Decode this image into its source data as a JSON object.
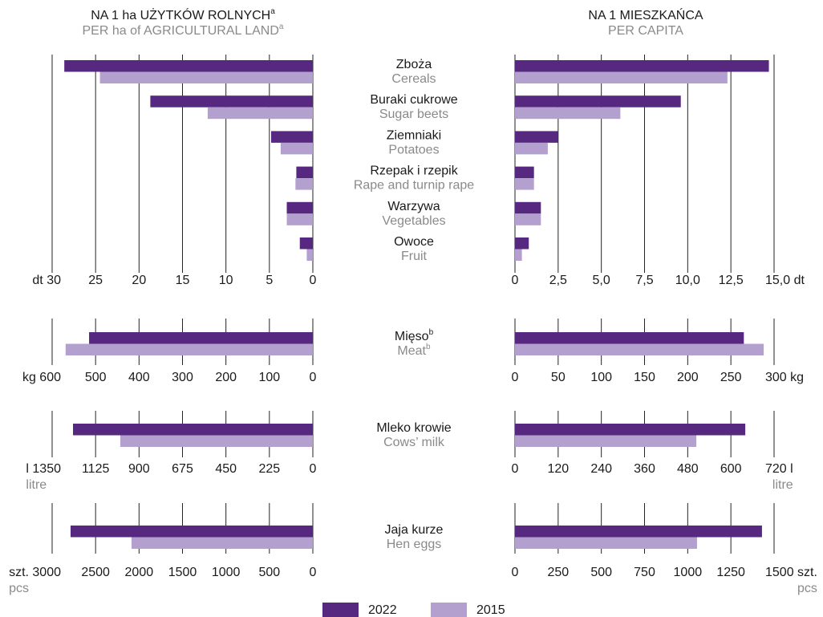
{
  "headers": [
    {
      "title": "NA 1 ha UŻYTKÓW ROLNYCH",
      "title_note": "a",
      "subtitle": "PER ha of AGRICULTURAL LAND",
      "subtitle_note": "a"
    },
    {
      "title": "NA 1 MIESZKAŃCA",
      "subtitle": "PER CAPITA"
    }
  ],
  "chart_data": [
    {
      "type": "bar",
      "orientation": "horizontal",
      "categories": [
        "Zboża",
        "Buraki cukrowe",
        "Ziemniaki",
        "Rzepak i rzepik",
        "Warzywa",
        "Owoce"
      ],
      "categories_en": [
        "Cereals",
        "Sugar beets",
        "Potatoes",
        "Rape and turnip rape",
        "Vegetables",
        "Fruit"
      ],
      "series": [
        {
          "name": "2022",
          "color": "#57287f",
          "values": [
            28.6,
            18.7,
            4.8,
            1.9,
            3.0,
            1.5
          ]
        },
        {
          "name": "2015",
          "color": "#b4a0cf",
          "values": [
            24.5,
            12.1,
            3.7,
            2.0,
            3.0,
            0.7
          ]
        }
      ],
      "xlim": [
        30,
        0
      ],
      "xticks": [
        {
          "value": 30,
          "label": "dt 30"
        },
        25,
        20,
        15,
        10,
        5,
        0
      ]
    },
    {
      "type": "bar",
      "orientation": "horizontal",
      "series": [
        {
          "color": "#57287f",
          "values": [
            14.7,
            9.6,
            2.5,
            1.1,
            1.5,
            0.8
          ]
        },
        {
          "color": "#b4a0cf",
          "values": [
            12.3,
            6.1,
            1.9,
            1.1,
            1.5,
            0.4
          ]
        }
      ],
      "xlim": [
        0,
        15
      ],
      "xticks": [
        0,
        {
          "value": 2.5,
          "label": "2,5"
        },
        {
          "value": 5,
          "label": "5,0"
        },
        {
          "value": 7.5,
          "label": "7,5"
        },
        {
          "value": 10,
          "label": "10,0"
        },
        {
          "value": 12.5,
          "label": "12,5"
        },
        {
          "value": 15,
          "label": "15,0 dt"
        }
      ]
    },
    {
      "type": "bar",
      "orientation": "horizontal",
      "categories": [
        "Mięso"
      ],
      "category_notes": [
        "b"
      ],
      "categories_en": [
        "Meat"
      ],
      "categories_en_notes": [
        "b"
      ],
      "series": [
        {
          "color": "#57287f",
          "values": [
            515
          ]
        },
        {
          "color": "#b4a0cf",
          "values": [
            569
          ]
        }
      ],
      "xlim": [
        600,
        0
      ],
      "xticks": [
        {
          "value": 600,
          "label": "kg 600"
        },
        500,
        400,
        300,
        200,
        100,
        0
      ]
    },
    {
      "type": "bar",
      "orientation": "horizontal",
      "series": [
        {
          "color": "#57287f",
          "values": [
            265
          ]
        },
        {
          "color": "#b4a0cf",
          "values": [
            288
          ]
        }
      ],
      "xlim": [
        0,
        300
      ],
      "xticks": [
        0,
        50,
        100,
        150,
        200,
        250,
        {
          "value": 300,
          "label": "300 kg"
        }
      ]
    },
    {
      "type": "bar",
      "orientation": "horizontal",
      "categories": [
        "Mleko krowie"
      ],
      "categories_en": [
        "Cows’ milk"
      ],
      "series": [
        {
          "color": "#57287f",
          "values": [
            1242
          ]
        },
        {
          "color": "#b4a0cf",
          "values": [
            997
          ]
        }
      ],
      "xlim": [
        1350,
        0
      ],
      "xticks": [
        {
          "value": 1350,
          "label": "l 1350"
        },
        1125,
        900,
        675,
        450,
        225,
        0
      ],
      "unit_note": "litre"
    },
    {
      "type": "bar",
      "orientation": "horizontal",
      "series": [
        {
          "color": "#57287f",
          "values": [
            640
          ]
        },
        {
          "color": "#b4a0cf",
          "values": [
            504
          ]
        }
      ],
      "xlim": [
        0,
        720
      ],
      "xticks": [
        0,
        120,
        240,
        360,
        480,
        600,
        {
          "value": 720,
          "label": "720 l"
        }
      ],
      "unit_note": "litre"
    },
    {
      "type": "bar",
      "orientation": "horizontal",
      "categories": [
        "Jaja kurze"
      ],
      "categories_en": [
        "Hen eggs"
      ],
      "series": [
        {
          "color": "#57287f",
          "values": [
            2788
          ]
        },
        {
          "color": "#b4a0cf",
          "values": [
            2086
          ]
        }
      ],
      "xlim": [
        3000,
        0
      ],
      "xticks": [
        {
          "value": 3000,
          "label": "szt. 3000"
        },
        2500,
        2000,
        1500,
        1000,
        500,
        0
      ],
      "unit_note": "pcs"
    },
    {
      "type": "bar",
      "orientation": "horizontal",
      "series": [
        {
          "color": "#57287f",
          "values": [
            1430
          ]
        },
        {
          "color": "#b4a0cf",
          "values": [
            1054
          ]
        }
      ],
      "xlim": [
        0,
        1500
      ],
      "xticks": [
        0,
        250,
        500,
        750,
        1000,
        1250,
        {
          "value": 1500,
          "label": "1500 szt."
        }
      ],
      "unit_note": "pcs"
    }
  ]
}
